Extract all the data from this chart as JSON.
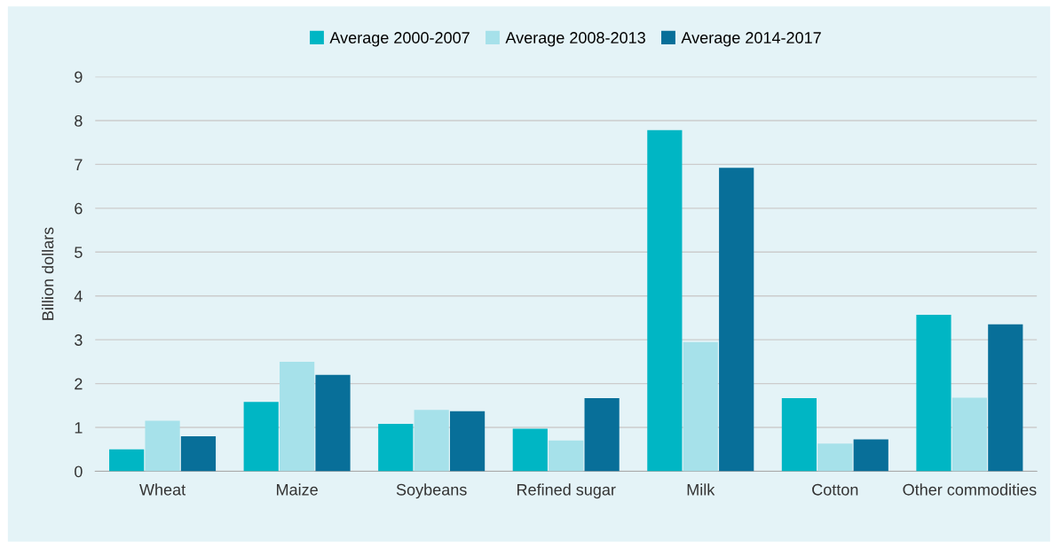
{
  "chart_data": {
    "type": "bar",
    "ylabel": "Billion dollars",
    "categories": [
      "Wheat",
      "Maize",
      "Soybeans",
      "Refined sugar",
      "Milk",
      "Cotton",
      "Other commodities"
    ],
    "series": [
      {
        "name": "Average 2000-2007",
        "color": "#00b6c4",
        "values": [
          0.5,
          1.58,
          1.08,
          0.97,
          7.78,
          1.67,
          3.57
        ]
      },
      {
        "name": "Average 2008-2013",
        "color": "#a6e1ea",
        "values": [
          1.15,
          2.5,
          1.4,
          0.7,
          2.95,
          0.63,
          1.68
        ]
      },
      {
        "name": "Average 2014-2017",
        "color": "#086f99",
        "values": [
          0.8,
          2.2,
          1.37,
          1.67,
          6.92,
          0.73,
          3.35
        ]
      }
    ],
    "ylim": [
      0,
      9
    ],
    "yticks": [
      0,
      1,
      2,
      3,
      4,
      5,
      6,
      7,
      8,
      9
    ],
    "grid": "y",
    "legend": "top"
  }
}
